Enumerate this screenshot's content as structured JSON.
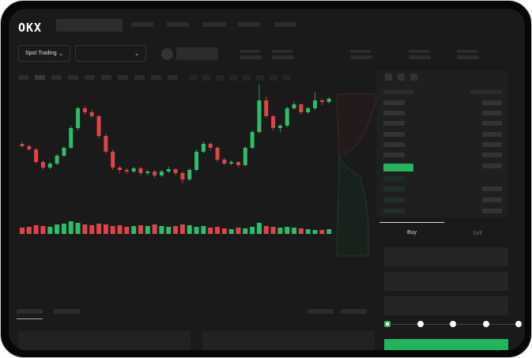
{
  "header": {
    "logo": "OKX"
  },
  "toolbar": {
    "market_type": "Spot Trading",
    "pair_select": ""
  },
  "colors": {
    "up": "#2ebd68",
    "down": "#e0434b",
    "accent": "#22b45e"
  },
  "chart_data": {
    "type": "candlestick",
    "candles": [
      [
        95,
        98,
        90,
        92
      ],
      [
        92,
        94,
        86,
        88
      ],
      [
        88,
        90,
        70,
        72
      ],
      [
        72,
        74,
        62,
        65
      ],
      [
        65,
        72,
        63,
        70
      ],
      [
        70,
        82,
        68,
        80
      ],
      [
        80,
        92,
        78,
        90
      ],
      [
        90,
        118,
        88,
        115
      ],
      [
        115,
        142,
        112,
        140
      ],
      [
        140,
        143,
        132,
        135
      ],
      [
        135,
        138,
        128,
        130
      ],
      [
        130,
        132,
        102,
        105
      ],
      [
        105,
        108,
        82,
        85
      ],
      [
        85,
        88,
        62,
        65
      ],
      [
        65,
        67,
        58,
        62
      ],
      [
        62,
        64,
        57,
        60
      ],
      [
        60,
        66,
        58,
        64
      ],
      [
        64,
        66,
        55,
        58
      ],
      [
        58,
        62,
        55,
        60
      ],
      [
        60,
        62,
        52,
        55
      ],
      [
        55,
        62,
        53,
        60
      ],
      [
        60,
        66,
        58,
        63
      ],
      [
        63,
        64,
        55,
        58
      ],
      [
        58,
        60,
        45,
        50
      ],
      [
        50,
        64,
        48,
        62
      ],
      [
        62,
        88,
        60,
        85
      ],
      [
        85,
        98,
        83,
        95
      ],
      [
        95,
        97,
        86,
        90
      ],
      [
        90,
        92,
        72,
        75
      ],
      [
        75,
        77,
        68,
        70
      ],
      [
        70,
        74,
        68,
        72
      ],
      [
        72,
        73,
        65,
        68
      ],
      [
        68,
        92,
        66,
        90
      ],
      [
        90,
        112,
        88,
        110
      ],
      [
        110,
        170,
        108,
        150
      ],
      [
        150,
        155,
        128,
        130
      ],
      [
        130,
        132,
        112,
        115
      ],
      [
        115,
        120,
        110,
        118
      ],
      [
        118,
        142,
        116,
        140
      ],
      [
        140,
        148,
        138,
        145
      ],
      [
        145,
        146,
        132,
        135
      ],
      [
        135,
        142,
        133,
        140
      ],
      [
        140,
        160,
        138,
        150
      ],
      [
        150,
        152,
        144,
        148
      ],
      [
        148,
        154,
        146,
        152
      ]
    ],
    "volumes": [
      8,
      9,
      11,
      10,
      9,
      12,
      13,
      16,
      14,
      12,
      11,
      13,
      12,
      10,
      11,
      9,
      10,
      11,
      10,
      12,
      10,
      9,
      10,
      12,
      11,
      9,
      10,
      8,
      9,
      7,
      6,
      8,
      7,
      9,
      14,
      10,
      9,
      8,
      9,
      8,
      7,
      6,
      5,
      5,
      6
    ]
  },
  "order_form": {
    "buy_tab": "Buy",
    "sell_tab": "Sell",
    "leverage_steps": 5,
    "leverage_selected": 0
  }
}
